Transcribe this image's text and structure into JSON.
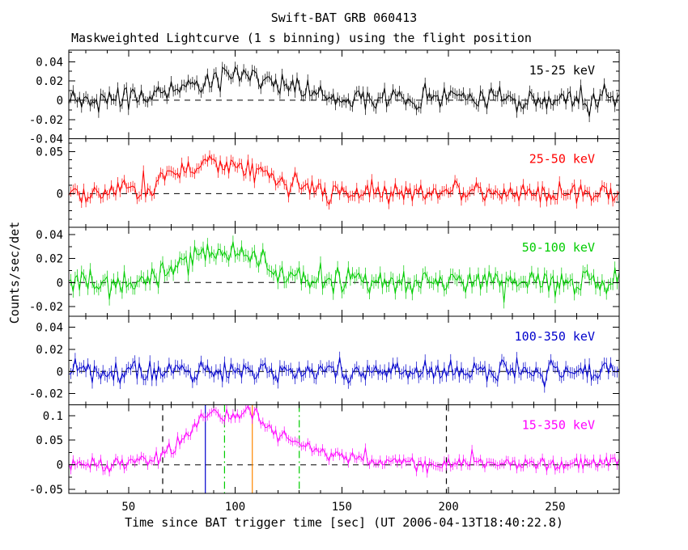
{
  "header": {
    "title": "Swift-BAT GRB 060413",
    "subtitle": "Maskweighted Lightcurve (1 s binning) using the flight position"
  },
  "axes": {
    "xlabel": "Time since BAT trigger time [sec] (UT 2006-04-13T18:40:22.8)",
    "ylabel": "Counts/sec/det"
  },
  "chart_data": {
    "type": "line",
    "title": "Swift-BAT GRB 060413",
    "subtitle": "Maskweighted Lightcurve (1 s binning) using the flight position",
    "xlabel": "Time since BAT trigger time [sec] (UT 2006-04-13T18:40:22.8)",
    "ylabel": "Counts/sec/det",
    "grid": false,
    "x_range": [
      22,
      280
    ],
    "x_ticks": [
      50,
      100,
      150,
      200,
      250
    ],
    "x_minor_step": 10,
    "bin_seconds": 1,
    "zero_line_style": "dashed",
    "panels": [
      {
        "label": "15-25 keV",
        "color": "#000000",
        "seed": 7,
        "y_range": [
          -0.04,
          0.052
        ],
        "y_ticks": [
          -0.04,
          -0.02,
          0,
          0.02,
          0.04
        ],
        "y_minor_step": 0.01,
        "noise_sigma": 0.006,
        "error_bar": 0.0055,
        "envelope": [
          [
            22,
            0
          ],
          [
            48,
            0.001
          ],
          [
            56,
            0.004
          ],
          [
            66,
            0.008
          ],
          [
            75,
            0.013
          ],
          [
            82,
            0.016
          ],
          [
            90,
            0.02
          ],
          [
            97,
            0.026
          ],
          [
            103,
            0.032
          ],
          [
            108,
            0.027
          ],
          [
            115,
            0.02
          ],
          [
            125,
            0.012
          ],
          [
            135,
            0.007
          ],
          [
            150,
            0.002
          ],
          [
            170,
            0.001
          ],
          [
            280,
            0
          ]
        ]
      },
      {
        "label": "25-50 keV",
        "color": "#ff0000",
        "seed": 13,
        "y_range": [
          -0.04,
          0.065
        ],
        "y_ticks": [
          0,
          0.05
        ],
        "y_minor_step": 0.01,
        "noise_sigma": 0.0065,
        "error_bar": 0.006,
        "envelope": [
          [
            22,
            0
          ],
          [
            42,
            0.002
          ],
          [
            48,
            0.007
          ],
          [
            55,
            0.003
          ],
          [
            62,
            0.012
          ],
          [
            68,
            0.024
          ],
          [
            75,
            0.026
          ],
          [
            82,
            0.032
          ],
          [
            87,
            0.039
          ],
          [
            92,
            0.031
          ],
          [
            98,
            0.037
          ],
          [
            103,
            0.034
          ],
          [
            110,
            0.024
          ],
          [
            118,
            0.016
          ],
          [
            128,
            0.009
          ],
          [
            140,
            0.004
          ],
          [
            158,
            0.001
          ],
          [
            280,
            0
          ]
        ]
      },
      {
        "label": "50-100 keV",
        "color": "#00cc00",
        "seed": 21,
        "y_range": [
          -0.028,
          0.046
        ],
        "y_ticks": [
          -0.02,
          0,
          0.02,
          0.04
        ],
        "y_minor_step": 0.01,
        "noise_sigma": 0.0055,
        "error_bar": 0.005,
        "envelope": [
          [
            22,
            0
          ],
          [
            55,
            0.001
          ],
          [
            63,
            0.005
          ],
          [
            70,
            0.01
          ],
          [
            77,
            0.018
          ],
          [
            83,
            0.027
          ],
          [
            88,
            0.023
          ],
          [
            93,
            0.019
          ],
          [
            99,
            0.025
          ],
          [
            103,
            0.031
          ],
          [
            108,
            0.021
          ],
          [
            115,
            0.012
          ],
          [
            123,
            0.007
          ],
          [
            138,
            0.002
          ],
          [
            155,
            0.001
          ],
          [
            280,
            0
          ]
        ]
      },
      {
        "label": "100-350 keV",
        "color": "#0000cc",
        "seed": 29,
        "y_range": [
          -0.03,
          0.05
        ],
        "y_ticks": [
          -0.02,
          0,
          0.02,
          0.04
        ],
        "y_minor_step": 0.01,
        "noise_sigma": 0.0055,
        "error_bar": 0.005,
        "envelope": [
          [
            22,
            0
          ],
          [
            80,
            0
          ],
          [
            90,
            0.002
          ],
          [
            100,
            0.004
          ],
          [
            110,
            0.002
          ],
          [
            120,
            0
          ],
          [
            280,
            0
          ]
        ]
      },
      {
        "label": "15-350 keV",
        "color": "#ff00ff",
        "seed": 42,
        "y_range": [
          -0.058,
          0.122
        ],
        "y_ticks": [
          -0.05,
          0,
          0.05,
          0.1
        ],
        "y_minor_step": 0.025,
        "noise_sigma": 0.008,
        "error_bar": 0.0085,
        "envelope": [
          [
            22,
            0
          ],
          [
            45,
            0.002
          ],
          [
            52,
            0.006
          ],
          [
            58,
            0.011
          ],
          [
            65,
            0.02
          ],
          [
            70,
            0.032
          ],
          [
            75,
            0.05
          ],
          [
            80,
            0.078
          ],
          [
            85,
            0.098
          ],
          [
            90,
            0.104
          ],
          [
            95,
            0.09
          ],
          [
            100,
            0.097
          ],
          [
            105,
            0.107
          ],
          [
            108,
            0.103
          ],
          [
            113,
            0.082
          ],
          [
            118,
            0.065
          ],
          [
            124,
            0.052
          ],
          [
            132,
            0.037
          ],
          [
            140,
            0.027
          ],
          [
            150,
            0.017
          ],
          [
            160,
            0.011
          ],
          [
            175,
            0.006
          ],
          [
            190,
            0.003
          ],
          [
            210,
            0.002
          ],
          [
            280,
            0.001
          ]
        ]
      }
    ],
    "t90_markers": [
      {
        "t": 66,
        "style": "dashed",
        "color": "#000000"
      },
      {
        "t": 86,
        "style": "solid",
        "color": "#0000cc"
      },
      {
        "t": 95,
        "style": "dashdot",
        "color": "#00cc00"
      },
      {
        "t": 108,
        "style": "solid",
        "color": "#ff8800"
      },
      {
        "t": 130,
        "style": "dashdot",
        "color": "#00cc00"
      },
      {
        "t": 199,
        "style": "dashed",
        "color": "#000000"
      }
    ]
  }
}
